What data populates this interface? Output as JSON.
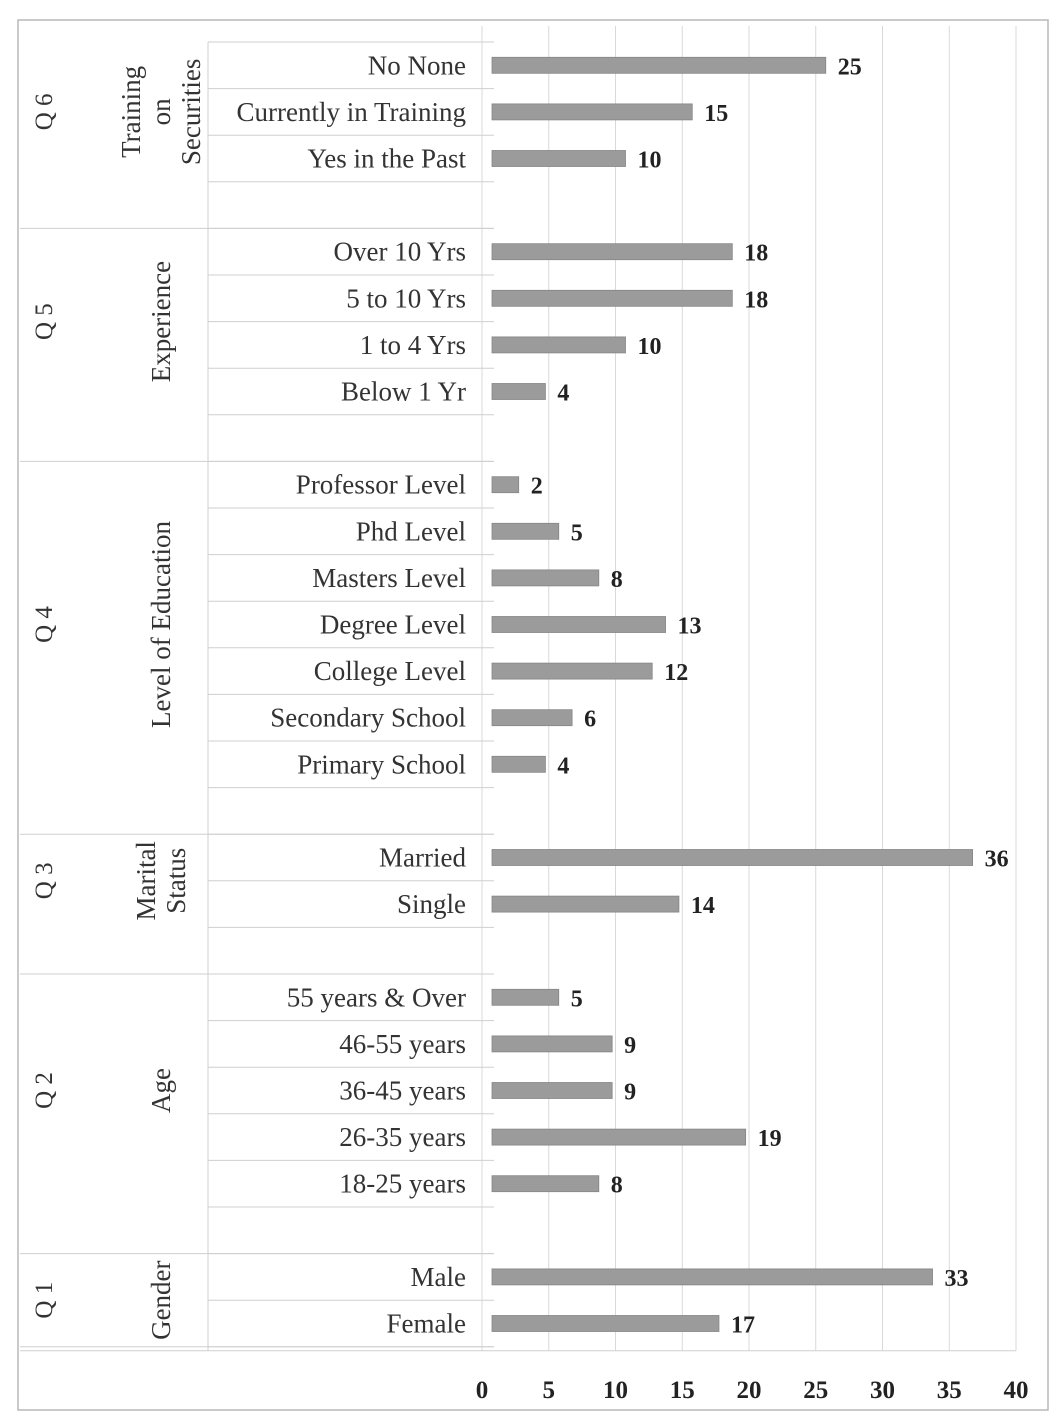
{
  "chart_data": {
    "type": "bar",
    "orientation": "horizontal",
    "x_ticks": [
      0,
      5,
      10,
      15,
      20,
      25,
      30,
      35,
      40
    ],
    "xlim": [
      0,
      40
    ],
    "grid": true,
    "legend": "none",
    "bar_color": "#9b9b9b",
    "groups": [
      {
        "question": "Q 6",
        "title": [
          "Training",
          "on",
          "Securities"
        ],
        "categories": [
          "No None",
          "Currently in Training",
          "Yes in the Past"
        ],
        "values": [
          25,
          15,
          10
        ]
      },
      {
        "question": "Q 5",
        "title": [
          "Experience"
        ],
        "categories": [
          "Over 10 Yrs",
          "5 to 10 Yrs",
          "1 to 4 Yrs",
          "Below 1 Yr"
        ],
        "values": [
          18,
          18,
          10,
          4
        ]
      },
      {
        "question": "Q 4",
        "title": [
          "Level of Education"
        ],
        "categories": [
          "Professor Level",
          "Phd Level",
          "Masters Level",
          "Degree Level",
          "College Level",
          "Secondary School",
          "Primary School"
        ],
        "values": [
          2,
          5,
          8,
          13,
          12,
          6,
          4
        ]
      },
      {
        "question": "Q 3",
        "title": [
          "Marital",
          "Status"
        ],
        "categories": [
          "Married",
          "Single"
        ],
        "values": [
          36,
          14
        ]
      },
      {
        "question": "Q 2",
        "title": [
          "Age"
        ],
        "categories": [
          "55 years & Over",
          "46-55 years",
          "36-45 years",
          "26-35 years",
          "18-25 years"
        ],
        "values": [
          5,
          9,
          9,
          19,
          8
        ]
      },
      {
        "question": "Q 1",
        "title": [
          "Gender"
        ],
        "categories": [
          "Male",
          "Female"
        ],
        "values": [
          33,
          17
        ]
      }
    ]
  }
}
